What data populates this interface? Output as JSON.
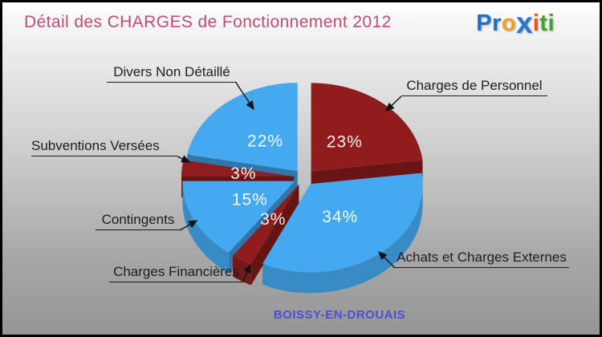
{
  "header": {
    "title": "Détail des CHARGES de Fonctionnement 2012",
    "title_color": "#c24b72",
    "logo_parts": [
      {
        "text": "Pr",
        "color": "#1e6fc8"
      },
      {
        "text": "o",
        "color": "#f59f1e"
      },
      {
        "text": "x",
        "color": "#2a74d2"
      },
      {
        "text": "i",
        "color": "#e8541e"
      },
      {
        "text": "ti",
        "color": "#3fa32a"
      }
    ]
  },
  "footer": {
    "municipality": "BOISSY-EN-DROUAIS",
    "color": "#4d4dd8"
  },
  "chart_data": {
    "type": "pie",
    "style": "3d-exploded",
    "title": "Détail des CHARGES de Fonctionnement 2012",
    "value_format": "percent",
    "start_angle_deg": -90,
    "direction": "clockwise",
    "legend_position": "callouts",
    "colors": {
      "blue": "#45a9f0",
      "dark_red": "#8f1d1d"
    },
    "slices": [
      {
        "label": "Charges de Personnel",
        "value": 23,
        "display": "23%",
        "color": "#8f1d1d"
      },
      {
        "label": "Achats et Charges Externes",
        "value": 34,
        "display": "34%",
        "color": "#45a9f0"
      },
      {
        "label": "Charges Financières",
        "value": 3,
        "display": "3%",
        "color": "#8f1d1d"
      },
      {
        "label": "Contingents",
        "value": 15,
        "display": "15%",
        "color": "#45a9f0"
      },
      {
        "label": "Subventions Versées",
        "value": 3,
        "display": "3%",
        "color": "#8f1d1d"
      },
      {
        "label": "Divers Non Détaillé",
        "value": 22,
        "display": "22%",
        "color": "#45a9f0"
      }
    ]
  }
}
